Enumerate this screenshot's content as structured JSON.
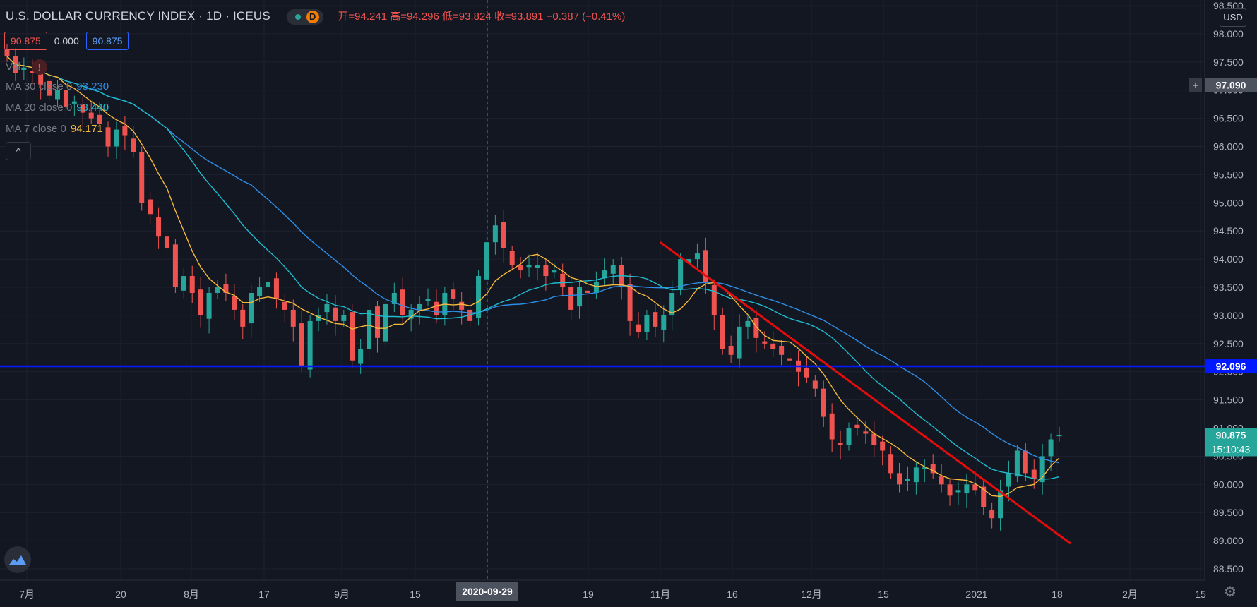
{
  "header": {
    "title": "U.S. DOLLAR CURRENCY INDEX · 1D · ICEUS",
    "interval_badge": "D",
    "ohlc": "开=94.241 高=94.296 低=93.824 收=93.891 −0.387 (−0.41%)"
  },
  "price_boxes": {
    "sell": "90.875",
    "spread": "0.000",
    "buy": "90.875"
  },
  "indicators": {
    "vol_label": "Vol",
    "ma30_label": "MA 30 close 0",
    "ma30_value": "93.230",
    "ma20_label": "MA 20 close 0",
    "ma20_value": "93.440",
    "ma7_label": "MA 7 close 0",
    "ma7_value": "94.171"
  },
  "collapse_glyph": "^",
  "currency_button": "USD",
  "colors": {
    "background": "#131722",
    "up": "#26a69a",
    "down": "#ef5350",
    "ma7": "#f6b93b",
    "ma20": "#1dbdcf",
    "ma30": "#2d8ee8",
    "support_line": "#0019ff",
    "trend_line": "#e40c0c"
  },
  "chart_data": {
    "type": "candlestick",
    "title": "U.S. DOLLAR CURRENCY INDEX · 1D · ICEUS",
    "ylim": [
      88.3,
      98.6
    ],
    "y_ticks": [
      "88.500",
      "89.000",
      "89.500",
      "90.000",
      "90.500",
      "91.000",
      "91.500",
      "92.000",
      "92.500",
      "93.000",
      "93.500",
      "94.000",
      "94.500",
      "95.000",
      "95.500",
      "96.000",
      "96.500",
      "97.000",
      "97.500",
      "98.000",
      "98.500"
    ],
    "x_labels": [
      "7月",
      "20",
      "8月",
      "17",
      "9月",
      "15",
      "2020-09-29",
      "19",
      "11月",
      "16",
      "12月",
      "15",
      "2021",
      "18",
      "2月",
      "15"
    ],
    "crosshair": {
      "date": "2020-09-29",
      "price": "97.090"
    },
    "support_level": {
      "price": "92.096"
    },
    "last_price": {
      "price": "90.875",
      "countdown": "15:10:43"
    },
    "trend_line": {
      "start": {
        "date": "2020-11-02",
        "price": 94.3
      },
      "end": {
        "date": "2021-01-26",
        "price": 88.95
      }
    },
    "series": {
      "candles_close": [
        97.6,
        97.3,
        97.4,
        97.3,
        97.1,
        96.9,
        97.0,
        96.7,
        96.8,
        96.6,
        96.5,
        96.4,
        96.0,
        96.3,
        96.2,
        95.9,
        95.0,
        94.8,
        94.4,
        94.2,
        93.5,
        93.7,
        93.4,
        93.0,
        93.4,
        93.5,
        93.4,
        93.1,
        92.8,
        93.4,
        93.5,
        93.6,
        93.3,
        93.1,
        92.8,
        92.1,
        92.9,
        93.0,
        93.2,
        92.9,
        93.0,
        92.2,
        92.4,
        93.1,
        92.6,
        93.2,
        93.4,
        93.0,
        93.1,
        93.2,
        93.3,
        93.0,
        93.4,
        93.3,
        93.1,
        92.9,
        93.7,
        94.3,
        94.6,
        94.2,
        93.9,
        93.8,
        93.9,
        93.9,
        93.7,
        93.8,
        93.5,
        93.1,
        93.5,
        93.4,
        93.6,
        93.8,
        93.9,
        93.5,
        92.9,
        92.7,
        93.0,
        92.8,
        93.0,
        93.4,
        94.0,
        94.0,
        94.1,
        93.6,
        93.0,
        92.4,
        92.3,
        92.8,
        92.9,
        92.6,
        92.5,
        92.4,
        92.3,
        92.2,
        92.0,
        91.9,
        91.7,
        91.2,
        90.8,
        90.7,
        91.0,
        91.0,
        90.9,
        90.7,
        90.6,
        90.2,
        90.0,
        90.1,
        90.3,
        90.3,
        90.2,
        90.0,
        89.8,
        89.9,
        90.0,
        89.9,
        89.6,
        89.4,
        89.9,
        90.2,
        90.6,
        90.2,
        90.1,
        90.5,
        90.8,
        90.88
      ]
    }
  }
}
